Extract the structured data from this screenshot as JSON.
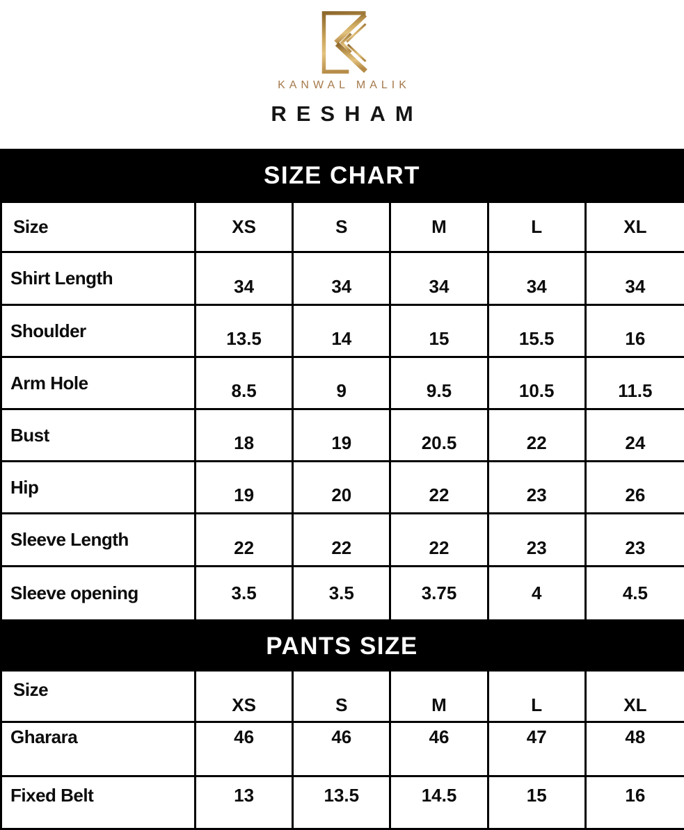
{
  "brand": {
    "name": "KANWAL MALIK",
    "collection": "RESHAM",
    "monogram_icon": "stylized-gold-K",
    "gold_color": "#a5794a",
    "gold_gradient": [
      "#8d672c",
      "#caa45b",
      "#e2c27e",
      "#b68c48"
    ]
  },
  "colors": {
    "banner_background": "#000000",
    "banner_text": "#ffffff",
    "table_border": "#000000",
    "body_text": "#0c0c0c"
  },
  "size_chart": {
    "title": "SIZE CHART",
    "header": {
      "label": "Size",
      "sizes": [
        "XS",
        "S",
        "M",
        "L",
        "XL"
      ]
    },
    "rows": [
      {
        "label": "Shirt Length",
        "values": [
          "34",
          "34",
          "34",
          "34",
          "34"
        ]
      },
      {
        "label": "Shoulder",
        "values": [
          "13.5",
          "14",
          "15",
          "15.5",
          "16"
        ]
      },
      {
        "label": "Arm Hole",
        "values": [
          "8.5",
          "9",
          "9.5",
          "10.5",
          "11.5"
        ]
      },
      {
        "label": "Bust",
        "values": [
          "18",
          "19",
          "20.5",
          "22",
          "24"
        ]
      },
      {
        "label": "Hip",
        "values": [
          "19",
          "20",
          "22",
          "23",
          "26"
        ]
      },
      {
        "label": "Sleeve Length",
        "values": [
          "22",
          "22",
          "22",
          "23",
          "23"
        ]
      },
      {
        "label": "Sleeve opening",
        "values": [
          "3.5",
          "3.5",
          "3.75",
          "4",
          "4.5"
        ]
      }
    ]
  },
  "pants_size": {
    "title": "PANTS SIZE",
    "header": {
      "label": "Size",
      "sizes": [
        "XS",
        "S",
        "M",
        "L",
        "XL"
      ]
    },
    "rows": [
      {
        "label": "Gharara",
        "values": [
          "46",
          "46",
          "46",
          "47",
          "48"
        ]
      },
      {
        "label": "Fixed Belt",
        "values": [
          "13",
          "13.5",
          "14.5",
          "15",
          "16"
        ]
      }
    ]
  }
}
